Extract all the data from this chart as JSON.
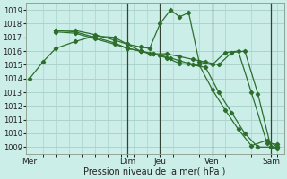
{
  "xlabel": "Pression niveau de la mer( hPa )",
  "bg_color": "#cceee8",
  "grid_color": "#aad4cc",
  "line_color": "#2d6e2d",
  "vline_color": "#334433",
  "ylim": [
    1008.5,
    1019.5
  ],
  "yticks": [
    1009,
    1010,
    1011,
    1012,
    1013,
    1014,
    1015,
    1016,
    1017,
    1018,
    1019
  ],
  "xlim": [
    -0.3,
    19.5
  ],
  "day_labels": [
    "Mer",
    "Dim",
    "Jeu",
    "Ven",
    "Sam"
  ],
  "day_positions": [
    0.0,
    7.5,
    10.0,
    14.0,
    18.5
  ],
  "vline_positions": [
    7.5,
    10.0,
    14.0,
    18.5
  ],
  "lines": [
    {
      "x": [
        0,
        1.0,
        2.0,
        3.5,
        5.0,
        6.5,
        7.5,
        8.5,
        9.5,
        10.5,
        11.5,
        12.5,
        13.5,
        14.5,
        15.5,
        16.5,
        17.5,
        18.5,
        19.0
      ],
      "y": [
        1014.0,
        1015.2,
        1016.2,
        1016.7,
        1017.1,
        1017.0,
        1016.5,
        1016.0,
        1015.8,
        1015.5,
        1015.1,
        1015.0,
        1014.8,
        1013.0,
        1011.5,
        1010.0,
        1009.0,
        1009.0,
        1008.9
      ]
    },
    {
      "x": [
        2.0,
        3.5,
        5.0,
        6.5,
        7.5,
        8.5,
        9.2,
        10.0,
        10.8,
        11.5,
        12.2,
        13.0,
        14.0,
        15.0,
        16.0,
        17.0,
        18.2,
        19.0
      ],
      "y": [
        1017.5,
        1017.5,
        1017.2,
        1016.8,
        1016.5,
        1016.3,
        1016.2,
        1018.0,
        1019.0,
        1018.5,
        1018.8,
        1015.2,
        1015.0,
        1015.9,
        1016.0,
        1013.0,
        1009.3,
        1009.2
      ]
    },
    {
      "x": [
        2.0,
        3.5,
        5.0,
        6.5,
        7.5,
        8.5,
        9.2,
        10.0,
        10.8,
        11.5,
        12.2,
        13.0,
        14.0,
        15.0,
        16.0,
        17.0,
        18.2,
        19.0
      ],
      "y": [
        1017.4,
        1017.3,
        1016.9,
        1016.5,
        1016.2,
        1016.0,
        1015.8,
        1015.7,
        1015.5,
        1015.3,
        1015.1,
        1015.0,
        1013.2,
        1011.7,
        1010.3,
        1009.1,
        1009.5,
        1009.0
      ]
    },
    {
      "x": [
        2.0,
        3.5,
        5.0,
        6.5,
        7.5,
        8.5,
        9.5,
        10.5,
        11.5,
        12.5,
        13.5,
        14.5,
        15.5,
        16.5,
        17.5,
        18.5,
        19.0
      ],
      "y": [
        1017.5,
        1017.4,
        1017.0,
        1016.6,
        1016.2,
        1016.0,
        1015.8,
        1015.8,
        1015.6,
        1015.4,
        1015.2,
        1015.0,
        1015.9,
        1016.0,
        1012.9,
        1009.0,
        1009.0
      ]
    }
  ]
}
